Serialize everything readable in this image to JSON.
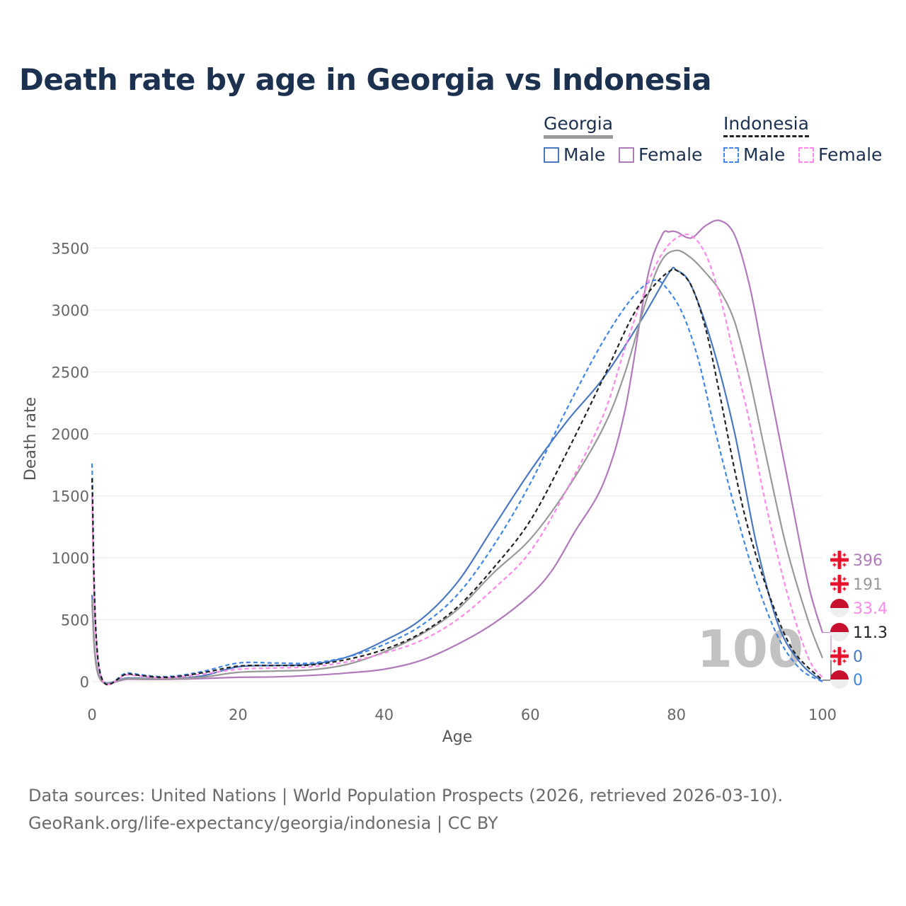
{
  "title": "Death rate by age in Georgia vs Indonesia",
  "legend": {
    "georgia": {
      "label": "Georgia",
      "male": "Male",
      "female": "Female"
    },
    "indonesia": {
      "label": "Indonesia",
      "male": "Male",
      "female": "Female"
    }
  },
  "colors": {
    "georgia_male": "#4a78c0",
    "georgia_female": "#b07abb",
    "georgia_total": "#999999",
    "indonesia_male": "#3f86e6",
    "indonesia_female": "#ff88e8",
    "indonesia_total": "#222222",
    "title": "#1c3150",
    "grid": "#e6e6e6",
    "watermark": "#c2c2c2"
  },
  "source": {
    "line1": "Data sources: United Nations | World Population Prospects (2026, retrieved 2026-03-10).",
    "line2": "GeoRank.org/life-expectancy/georgia/indonesia | CC BY"
  },
  "chart_data": {
    "type": "line",
    "xlabel": "Age",
    "ylabel": "Death rate",
    "xlim": [
      0,
      100
    ],
    "ylim": [
      0,
      3700
    ],
    "xticks": [
      0,
      20,
      40,
      60,
      80,
      100
    ],
    "yticks": [
      0,
      500,
      1000,
      1500,
      2000,
      2500,
      3000,
      3500
    ],
    "grid": true,
    "watermark": "100",
    "series": [
      {
        "name": "Georgia Male",
        "color": "georgia_male",
        "dash": false,
        "end_label": "0",
        "points": [
          [
            0,
            700
          ],
          [
            1,
            40
          ],
          [
            5,
            30
          ],
          [
            10,
            25
          ],
          [
            15,
            45
          ],
          [
            20,
            120
          ],
          [
            25,
            130
          ],
          [
            30,
            140
          ],
          [
            35,
            200
          ],
          [
            40,
            330
          ],
          [
            45,
            500
          ],
          [
            50,
            800
          ],
          [
            55,
            1250
          ],
          [
            60,
            1700
          ],
          [
            65,
            2100
          ],
          [
            70,
            2450
          ],
          [
            75,
            2900
          ],
          [
            79,
            3300
          ],
          [
            80,
            3320
          ],
          [
            82,
            3200
          ],
          [
            85,
            2700
          ],
          [
            88,
            2000
          ],
          [
            91,
            1100
          ],
          [
            94,
            450
          ],
          [
            97,
            150
          ],
          [
            100,
            0
          ]
        ]
      },
      {
        "name": "Georgia Female",
        "color": "georgia_female",
        "dash": false,
        "end_label": "396",
        "points": [
          [
            0,
            620
          ],
          [
            1,
            30
          ],
          [
            5,
            20
          ],
          [
            10,
            18
          ],
          [
            15,
            25
          ],
          [
            20,
            35
          ],
          [
            25,
            38
          ],
          [
            30,
            50
          ],
          [
            35,
            70
          ],
          [
            40,
            100
          ],
          [
            45,
            170
          ],
          [
            50,
            300
          ],
          [
            55,
            470
          ],
          [
            60,
            700
          ],
          [
            63,
            900
          ],
          [
            66,
            1200
          ],
          [
            70,
            1600
          ],
          [
            73,
            2200
          ],
          [
            76,
            3250
          ],
          [
            78,
            3600
          ],
          [
            79,
            3630
          ],
          [
            80,
            3630
          ],
          [
            82,
            3580
          ],
          [
            84,
            3680
          ],
          [
            86,
            3720
          ],
          [
            88,
            3600
          ],
          [
            90,
            3200
          ],
          [
            92,
            2600
          ],
          [
            95,
            1700
          ],
          [
            98,
            800
          ],
          [
            100,
            396
          ]
        ]
      },
      {
        "name": "Georgia Total",
        "color": "georgia_total",
        "dash": false,
        "end_label": "191",
        "points": [
          [
            0,
            660
          ],
          [
            1,
            35
          ],
          [
            5,
            25
          ],
          [
            10,
            22
          ],
          [
            15,
            35
          ],
          [
            20,
            75
          ],
          [
            25,
            85
          ],
          [
            30,
            95
          ],
          [
            35,
            140
          ],
          [
            40,
            240
          ],
          [
            45,
            380
          ],
          [
            50,
            580
          ],
          [
            55,
            880
          ],
          [
            60,
            1150
          ],
          [
            65,
            1550
          ],
          [
            70,
            2050
          ],
          [
            73,
            2500
          ],
          [
            76,
            3100
          ],
          [
            78,
            3400
          ],
          [
            80,
            3480
          ],
          [
            82,
            3420
          ],
          [
            84,
            3300
          ],
          [
            86,
            3150
          ],
          [
            88,
            2900
          ],
          [
            90,
            2450
          ],
          [
            92,
            1900
          ],
          [
            95,
            1100
          ],
          [
            98,
            500
          ],
          [
            100,
            191
          ]
        ]
      },
      {
        "name": "Indonesia Male",
        "color": "indonesia_male",
        "dash": true,
        "end_label": "0",
        "points": [
          [
            0,
            1760
          ],
          [
            1,
            110
          ],
          [
            5,
            70
          ],
          [
            10,
            40
          ],
          [
            15,
            80
          ],
          [
            20,
            150
          ],
          [
            25,
            150
          ],
          [
            30,
            150
          ],
          [
            35,
            200
          ],
          [
            40,
            300
          ],
          [
            45,
            450
          ],
          [
            50,
            700
          ],
          [
            55,
            1100
          ],
          [
            60,
            1600
          ],
          [
            65,
            2200
          ],
          [
            70,
            2750
          ],
          [
            74,
            3100
          ],
          [
            77,
            3240
          ],
          [
            79,
            3150
          ],
          [
            81,
            2950
          ],
          [
            83,
            2600
          ],
          [
            85,
            2100
          ],
          [
            88,
            1400
          ],
          [
            91,
            800
          ],
          [
            94,
            350
          ],
          [
            97,
            100
          ],
          [
            100,
            0
          ]
        ]
      },
      {
        "name": "Indonesia Female",
        "color": "indonesia_female",
        "dash": true,
        "end_label": "33.4",
        "points": [
          [
            0,
            1500
          ],
          [
            1,
            90
          ],
          [
            5,
            55
          ],
          [
            10,
            30
          ],
          [
            15,
            60
          ],
          [
            20,
            100
          ],
          [
            25,
            110
          ],
          [
            30,
            120
          ],
          [
            35,
            160
          ],
          [
            40,
            230
          ],
          [
            45,
            330
          ],
          [
            50,
            500
          ],
          [
            55,
            750
          ],
          [
            60,
            1050
          ],
          [
            65,
            1550
          ],
          [
            70,
            2150
          ],
          [
            73,
            2700
          ],
          [
            76,
            3200
          ],
          [
            78,
            3450
          ],
          [
            80,
            3580
          ],
          [
            82,
            3600
          ],
          [
            84,
            3450
          ],
          [
            86,
            3100
          ],
          [
            88,
            2600
          ],
          [
            90,
            2100
          ],
          [
            92,
            1500
          ],
          [
            95,
            750
          ],
          [
            98,
            200
          ],
          [
            100,
            33.4
          ]
        ]
      },
      {
        "name": "Indonesia Total",
        "color": "indonesia_total",
        "dash": true,
        "end_label": "11.3",
        "points": [
          [
            0,
            1640
          ],
          [
            1,
            100
          ],
          [
            5,
            62
          ],
          [
            10,
            35
          ],
          [
            15,
            70
          ],
          [
            20,
            125
          ],
          [
            25,
            130
          ],
          [
            30,
            135
          ],
          [
            35,
            180
          ],
          [
            40,
            260
          ],
          [
            45,
            390
          ],
          [
            50,
            600
          ],
          [
            55,
            920
          ],
          [
            60,
            1300
          ],
          [
            65,
            1850
          ],
          [
            70,
            2450
          ],
          [
            74,
            2950
          ],
          [
            77,
            3200
          ],
          [
            79,
            3310
          ],
          [
            80,
            3320
          ],
          [
            82,
            3200
          ],
          [
            84,
            2850
          ],
          [
            86,
            2300
          ],
          [
            88,
            1700
          ],
          [
            90,
            1200
          ],
          [
            93,
            650
          ],
          [
            96,
            250
          ],
          [
            100,
            11.3
          ]
        ]
      }
    ],
    "end_labels_order": [
      {
        "value": "396",
        "country": "georgia",
        "color": "georgia_female"
      },
      {
        "value": "191",
        "country": "georgia",
        "color": "georgia_total"
      },
      {
        "value": "33.4",
        "country": "indonesia",
        "color": "indonesia_female"
      },
      {
        "value": "11.3",
        "country": "indonesia",
        "color": "indonesia_total"
      },
      {
        "value": "0",
        "country": "georgia",
        "color": "georgia_male"
      },
      {
        "value": "0",
        "country": "indonesia",
        "color": "indonesia_male"
      }
    ]
  }
}
